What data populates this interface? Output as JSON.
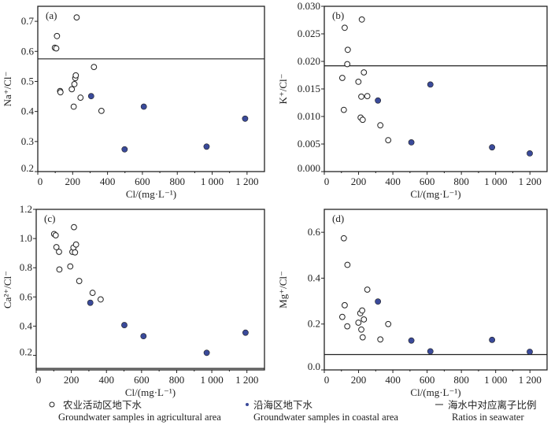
{
  "chart_data": [
    {
      "type": "scatter",
      "panel_label": "(a)",
      "xlabel": "Cl/(mg·L⁻¹)",
      "ylabel": "Na⁺/Cl⁻",
      "xlim": [
        0,
        1300
      ],
      "ylim": [
        0.2,
        0.75
      ],
      "xticks": [
        0,
        200,
        400,
        600,
        800,
        1000,
        1200
      ],
      "xtick_labels": [
        "0",
        "200",
        "400",
        "600",
        "800",
        "1 000",
        "1 200"
      ],
      "yticks": [
        0.2,
        0.3,
        0.4,
        0.5,
        0.6,
        0.7
      ],
      "ytick_labels": [
        "0.2",
        "0.3",
        "0.4",
        "0.5",
        "0.6",
        "0.7"
      ],
      "seawater_ratio": 0.575,
      "agricultural": [
        [
          98,
          0.612
        ],
        [
          106,
          0.61
        ],
        [
          110,
          0.651
        ],
        [
          223,
          0.713
        ],
        [
          128,
          0.468
        ],
        [
          130,
          0.464
        ],
        [
          195,
          0.474
        ],
        [
          206,
          0.416
        ],
        [
          210,
          0.491
        ],
        [
          215,
          0.511
        ],
        [
          218,
          0.52
        ],
        [
          245,
          0.446
        ],
        [
          322,
          0.548
        ],
        [
          365,
          0.402
        ]
      ],
      "coastal": [
        [
          306,
          0.451
        ],
        [
          498,
          0.274
        ],
        [
          608,
          0.416
        ],
        [
          968,
          0.283
        ],
        [
          1189,
          0.376
        ]
      ]
    },
    {
      "type": "scatter",
      "panel_label": "(b)",
      "xlabel": "Cl/(mg·L⁻¹)",
      "ylabel": "K⁺/Cl⁻",
      "xlim": [
        0,
        1300
      ],
      "ylim": [
        0,
        0.03
      ],
      "xticks": [
        0,
        200,
        400,
        600,
        800,
        1000,
        1200
      ],
      "xtick_labels": [
        "0",
        "200",
        "400",
        "600",
        "800",
        "1 000",
        "1 200"
      ],
      "yticks": [
        0,
        0.005,
        0.01,
        0.015,
        0.02,
        0.025,
        0.03
      ],
      "ytick_labels": [
        "0.000",
        "0.005",
        "0.010",
        "0.015",
        "0.020",
        "0.025",
        "0.030"
      ],
      "seawater_ratio": 0.0192,
      "agricultural": [
        [
          119,
          0.0261
        ],
        [
          219,
          0.0276
        ],
        [
          137,
          0.0221
        ],
        [
          134,
          0.0195
        ],
        [
          231,
          0.018
        ],
        [
          105,
          0.017
        ],
        [
          199,
          0.0163
        ],
        [
          216,
          0.0136
        ],
        [
          251,
          0.0137
        ],
        [
          114,
          0.0112
        ],
        [
          212,
          0.0098
        ],
        [
          224,
          0.0094
        ],
        [
          327,
          0.0084
        ],
        [
          373,
          0.0057
        ]
      ],
      "coastal": [
        [
          313,
          0.0129
        ],
        [
          619,
          0.0158
        ],
        [
          508,
          0.0053
        ],
        [
          979,
          0.0044
        ],
        [
          1199,
          0.0033
        ]
      ]
    },
    {
      "type": "scatter",
      "panel_label": "(c)",
      "xlabel": "Cl/(mg·L⁻¹)",
      "ylabel": "Ca²⁺/Cl⁻",
      "xlim": [
        0,
        1300
      ],
      "ylim": [
        0.1,
        1.2
      ],
      "xticks": [
        0,
        200,
        400,
        600,
        800,
        1000,
        1200
      ],
      "xtick_labels": [
        "0",
        "200",
        "400",
        "600",
        "800",
        "1 000",
        "1 200"
      ],
      "yticks": [
        0.2,
        0.4,
        0.6,
        0.8,
        1.0,
        1.2
      ],
      "ytick_labels": [
        "0.2",
        "0.4",
        "0.6",
        "0.8",
        "1.0",
        "1.2"
      ],
      "seawater_ratio": 0.11,
      "agricultural": [
        [
          102,
          1.031
        ],
        [
          111,
          1.022
        ],
        [
          215,
          1.078
        ],
        [
          115,
          0.941
        ],
        [
          130,
          0.909
        ],
        [
          132,
          0.788
        ],
        [
          194,
          0.809
        ],
        [
          206,
          0.909
        ],
        [
          212,
          0.938
        ],
        [
          221,
          0.905
        ],
        [
          227,
          0.959
        ],
        [
          245,
          0.709
        ],
        [
          321,
          0.628
        ],
        [
          367,
          0.583
        ]
      ],
      "coastal": [
        [
          308,
          0.56
        ],
        [
          502,
          0.407
        ],
        [
          611,
          0.331
        ],
        [
          971,
          0.217
        ],
        [
          1192,
          0.355
        ]
      ]
    },
    {
      "type": "scatter",
      "panel_label": "(d)",
      "xlabel": "Cl/(mg·L⁻¹)",
      "ylabel": "Mg⁺/Cl⁻",
      "xlim": [
        0,
        1300
      ],
      "ylim": [
        0,
        0.7
      ],
      "xticks": [
        0,
        200,
        400,
        600,
        800,
        1000,
        1200
      ],
      "xtick_labels": [
        "0",
        "200",
        "400",
        "600",
        "800",
        "1 000",
        "1 200"
      ],
      "yticks": [
        0,
        0.2,
        0.4,
        0.6
      ],
      "ytick_labels": [
        "0.0",
        "0.2",
        "0.4",
        "0.6"
      ],
      "seawater_ratio": 0.067,
      "agricultural": [
        [
          114,
          0.574
        ],
        [
          135,
          0.458
        ],
        [
          251,
          0.35
        ],
        [
          119,
          0.282
        ],
        [
          105,
          0.231
        ],
        [
          134,
          0.19
        ],
        [
          199,
          0.206
        ],
        [
          210,
          0.247
        ],
        [
          221,
          0.259
        ],
        [
          231,
          0.22
        ],
        [
          216,
          0.176
        ],
        [
          224,
          0.142
        ],
        [
          327,
          0.133
        ],
        [
          373,
          0.2
        ]
      ],
      "coastal": [
        [
          313,
          0.298
        ],
        [
          508,
          0.128
        ],
        [
          619,
          0.081
        ],
        [
          979,
          0.131
        ],
        [
          1199,
          0.079
        ]
      ]
    }
  ],
  "legend": [
    {
      "symbol": "open-circle",
      "zh": "农业活动区地下水",
      "en": "Groundwater samples in agricultural area"
    },
    {
      "symbol": "filled-circle",
      "zh": "沿海区地下水",
      "en": "Groundwater samples in coastal area"
    },
    {
      "symbol": "line",
      "zh": "海水中对应离子比例",
      "en": "Ratios in seawater"
    }
  ],
  "colors": {
    "coastal_fill": "#3a4a9a",
    "axis": "#222222"
  }
}
